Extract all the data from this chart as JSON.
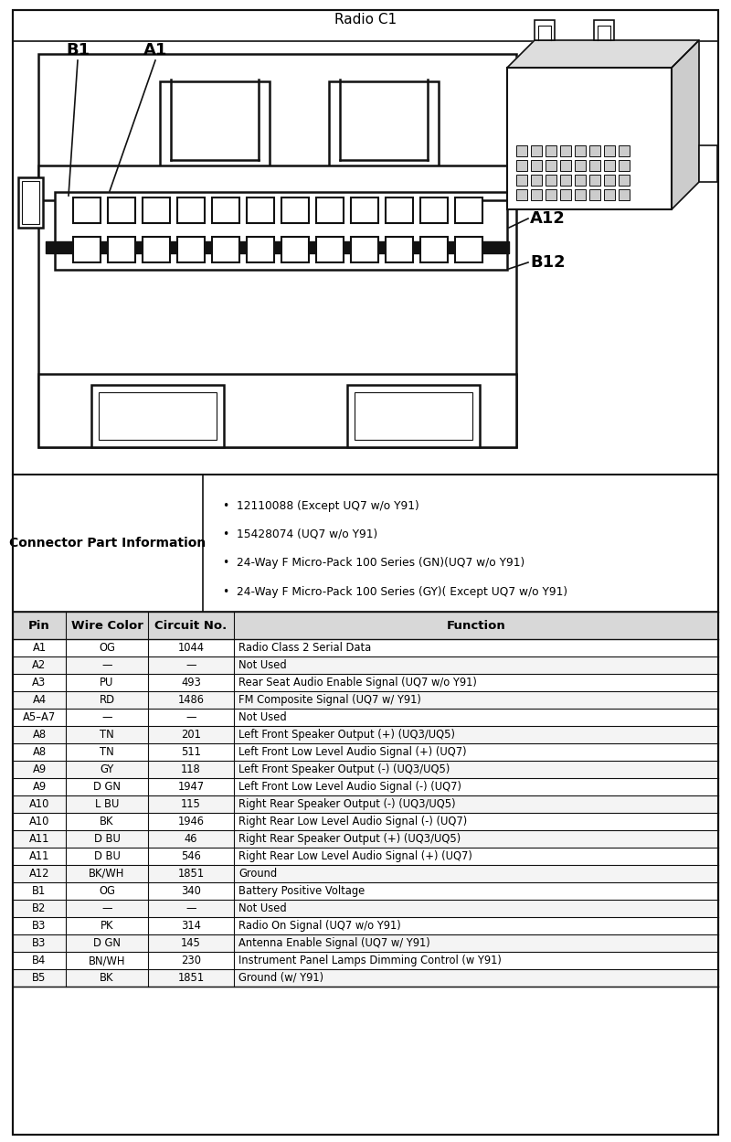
{
  "title": "Radio C1",
  "connector_part_info_label": "Connector Part Information",
  "connector_bullets": [
    "12110088 (Except UQ7 w/o Y91)",
    "15428074 (UQ7 w/o Y91)",
    "24-Way F Micro-Pack 100 Series (GN)(UQ7 w/o Y91)",
    "24-Way F Micro-Pack 100 Series (GY)( Except UQ7 w/o Y91)"
  ],
  "table_headers": [
    "Pin",
    "Wire Color",
    "Circuit No.",
    "Function"
  ],
  "table_rows": [
    [
      "A1",
      "OG",
      "1044",
      "Radio Class 2 Serial Data"
    ],
    [
      "A2",
      "—",
      "—",
      "Not Used"
    ],
    [
      "A3",
      "PU",
      "493",
      "Rear Seat Audio Enable Signal (UQ7 w/o Y91)"
    ],
    [
      "A4",
      "RD",
      "1486",
      "FM Composite Signal (UQ7 w/ Y91)"
    ],
    [
      "A5–A7",
      "—",
      "—",
      "Not Used"
    ],
    [
      "A8",
      "TN",
      "201",
      "Left Front Speaker Output (+) (UQ3/UQ5)"
    ],
    [
      "A8",
      "TN",
      "511",
      "Left Front Low Level Audio Signal (+) (UQ7)"
    ],
    [
      "A9",
      "GY",
      "118",
      "Left Front Speaker Output (-) (UQ3/UQ5)"
    ],
    [
      "A9",
      "D GN",
      "1947",
      "Left Front Low Level Audio Signal (-) (UQ7)"
    ],
    [
      "A10",
      "L BU",
      "115",
      "Right Rear Speaker Output (-) (UQ3/UQ5)"
    ],
    [
      "A10",
      "BK",
      "1946",
      "Right Rear Low Level Audio Signal (-) (UQ7)"
    ],
    [
      "A11",
      "D BU",
      "46",
      "Right Rear Speaker Output (+) (UQ3/UQ5)"
    ],
    [
      "A11",
      "D BU",
      "546",
      "Right Rear Low Level Audio Signal (+) (UQ7)"
    ],
    [
      "A12",
      "BK/WH",
      "1851",
      "Ground"
    ],
    [
      "B1",
      "OG",
      "340",
      "Battery Positive Voltage"
    ],
    [
      "B2",
      "—",
      "—",
      "Not Used"
    ],
    [
      "B3",
      "PK",
      "314",
      "Radio On Signal (UQ7 w/o Y91)"
    ],
    [
      "B3",
      "D GN",
      "145",
      "Antenna Enable Signal (UQ7 w/ Y91)"
    ],
    [
      "B4",
      "BN/WH",
      "230",
      "Instrument Panel Lamps Dimming Control (w Y91)"
    ],
    [
      "B5",
      "BK",
      "1851",
      "Ground (w/ Y91)"
    ]
  ],
  "diagram_label_B1": "B1",
  "diagram_label_A1": "A1",
  "diagram_label_A12": "A12",
  "diagram_label_B12": "B12",
  "lw": 1.8,
  "pin_color": "white",
  "body_color": "white",
  "edge_color": "#111111",
  "bg_color": "white"
}
